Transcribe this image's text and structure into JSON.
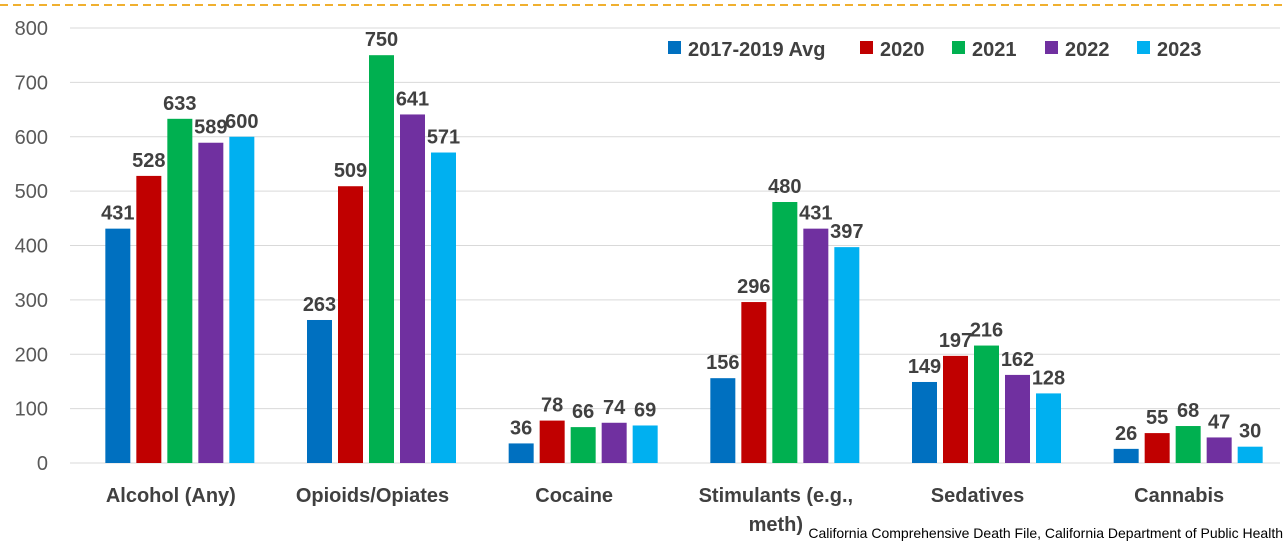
{
  "chart_data": {
    "type": "bar",
    "title": "",
    "xlabel": "",
    "ylabel": "",
    "ylim": [
      0,
      800
    ],
    "yticks": [
      0,
      100,
      200,
      300,
      400,
      500,
      600,
      700,
      800
    ],
    "grid": true,
    "legend_position": "top-right",
    "categories": [
      "Alcohol (Any)",
      "Opioids/Opiates",
      "Cocaine",
      "Stimulants (e.g., meth)",
      "Sedatives",
      "Cannabis"
    ],
    "category_lines": [
      [
        "Alcohol (Any)"
      ],
      [
        "Opioids/Opiates"
      ],
      [
        "Cocaine"
      ],
      [
        "Stimulants (e.g.,",
        "meth)"
      ],
      [
        "Sedatives"
      ],
      [
        "Cannabis"
      ]
    ],
    "series": [
      {
        "name": "2017-2019 Avg",
        "color": "#0070C0",
        "values": [
          431,
          263,
          36,
          156,
          149,
          26
        ]
      },
      {
        "name": "2020",
        "color": "#C00000",
        "values": [
          528,
          509,
          78,
          296,
          197,
          55
        ]
      },
      {
        "name": "2021",
        "color": "#00B050",
        "values": [
          633,
          750,
          66,
          480,
          216,
          68
        ]
      },
      {
        "name": "2022",
        "color": "#7030A0",
        "values": [
          589,
          641,
          74,
          431,
          162,
          47
        ]
      },
      {
        "name": "2023",
        "color": "#00B0F0",
        "values": [
          600,
          571,
          69,
          397,
          128,
          30
        ]
      }
    ],
    "source": "California Comprehensive Death File, California Department of Public Health"
  },
  "colors": {
    "border_dashed": "#F0B030",
    "grid": "#D9D9D9",
    "axis": "#D9D9D9"
  }
}
